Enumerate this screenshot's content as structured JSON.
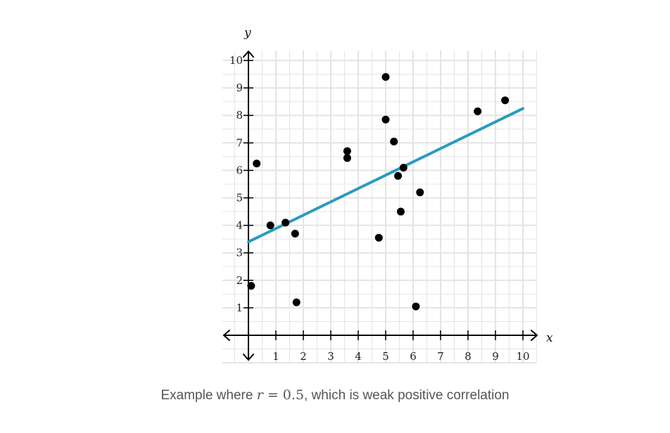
{
  "chart_data": {
    "type": "scatter",
    "title": "",
    "xlabel": "x",
    "ylabel": "y",
    "xlim": [
      0,
      10
    ],
    "ylim": [
      0,
      10
    ],
    "xticks": [
      "1",
      "2",
      "3",
      "4",
      "5",
      "6",
      "7",
      "8",
      "9",
      "10"
    ],
    "yticks": [
      "1",
      "2",
      "3",
      "4",
      "5",
      "6",
      "7",
      "8",
      "9",
      "10"
    ],
    "grid": true,
    "points": [
      {
        "x": 0.1,
        "y": 1.8
      },
      {
        "x": 0.3,
        "y": 6.25
      },
      {
        "x": 0.8,
        "y": 4.0
      },
      {
        "x": 1.35,
        "y": 4.1
      },
      {
        "x": 1.7,
        "y": 3.7
      },
      {
        "x": 1.75,
        "y": 1.2
      },
      {
        "x": 3.6,
        "y": 6.45
      },
      {
        "x": 3.6,
        "y": 6.7
      },
      {
        "x": 4.75,
        "y": 3.55
      },
      {
        "x": 5.0,
        "y": 9.4
      },
      {
        "x": 5.0,
        "y": 7.85
      },
      {
        "x": 5.3,
        "y": 7.05
      },
      {
        "x": 5.45,
        "y": 5.8
      },
      {
        "x": 5.55,
        "y": 4.5
      },
      {
        "x": 5.65,
        "y": 6.1
      },
      {
        "x": 6.1,
        "y": 1.05
      },
      {
        "x": 6.25,
        "y": 5.2
      },
      {
        "x": 8.35,
        "y": 8.15
      },
      {
        "x": 9.35,
        "y": 8.55
      }
    ],
    "trendline": {
      "x": [
        0,
        10
      ],
      "y": [
        3.4,
        8.25
      ]
    },
    "colors": {
      "points": "#000000",
      "trendline": "#2a9bc1",
      "grid": "#e4e4e4"
    }
  },
  "caption": {
    "prefix": "Example where ",
    "variable": "r",
    "equals": " = 0.5",
    "suffix": ", which is weak positive correlation"
  }
}
